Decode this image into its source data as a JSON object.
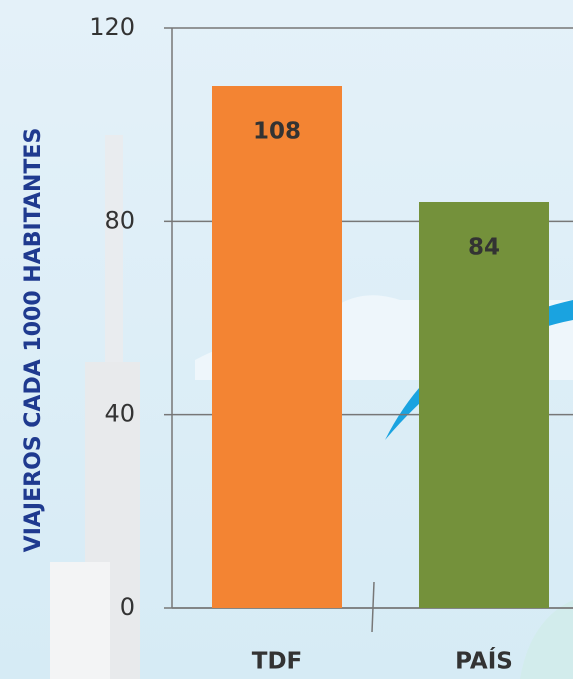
{
  "chart_data": {
    "type": "bar",
    "y_label": "VIAJEROS CADA 1000 HABITANTES",
    "categories": [
      "TDF",
      "PAÍS"
    ],
    "values": [
      108,
      84
    ],
    "colors": [
      "#f38433",
      "#74913b"
    ],
    "ylim": [
      0,
      120
    ],
    "yticks": [
      0,
      40,
      80,
      120
    ],
    "grid": true
  }
}
